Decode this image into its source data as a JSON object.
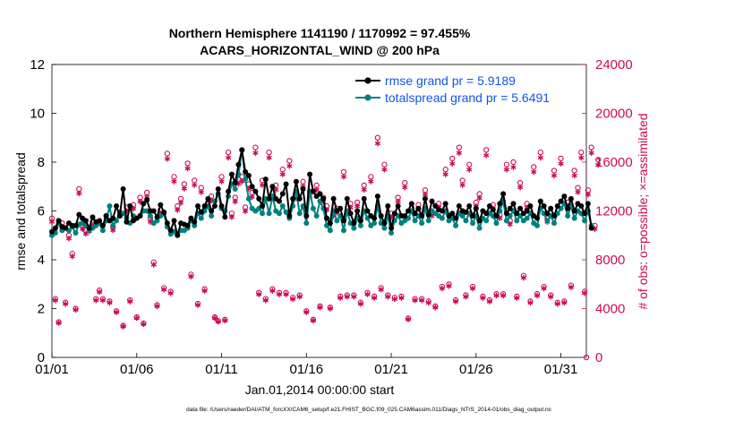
{
  "colors": {
    "rmse": "#000000",
    "spread": "#008080",
    "obs": "#cc0a55",
    "legend_text": "#1155ee",
    "right_axis": "#cc0a55"
  },
  "chart_data": {
    "type": "line",
    "title": "Northern Hemisphere 1141190 / 1170992 = 97.455%",
    "subtitle": "ACARS_HORIZONTAL_WIND @ 200 hPa",
    "xlabel": "Jan.01,2014 00:00:00 start",
    "ylabel": "rmse and totalspread",
    "y2label": "# of obs: o=possible; ×=assimilated",
    "footnote": "data file: /Users/raeder/DAI/ATM_forcXX/CAM6_setup/f.e21.FHIST_BGC.f09_025.CAM6assim.011/Diags_NTrS_2014-01/obs_diag_output.nc",
    "xlim": [
      0,
      31.5
    ],
    "ylim": [
      0,
      12
    ],
    "y2lim": [
      0,
      24000
    ],
    "xticks": [
      0,
      5,
      10,
      15,
      20,
      25,
      30
    ],
    "xtick_labels": [
      "01/01",
      "01/06",
      "01/11",
      "01/16",
      "01/21",
      "01/26",
      "01/31"
    ],
    "yticks": [
      0,
      2,
      4,
      6,
      8,
      10,
      12
    ],
    "ytick_labels": [
      "0",
      "2",
      "4",
      "6",
      "8",
      "10",
      "12"
    ],
    "y2ticks": [
      0,
      4000,
      8000,
      12000,
      16000,
      20000,
      24000
    ],
    "y2tick_labels": [
      "0",
      "4000",
      "8000",
      "12000",
      "16000",
      "20000",
      "24000"
    ],
    "legend": {
      "position": "top-right",
      "entries": [
        "rmse grand pr = 5.9189",
        "totalspread grand pr = 5.6491"
      ]
    },
    "series": [
      {
        "name": "rmse",
        "values": [
          5.15,
          5.3,
          5.6,
          5.35,
          5.3,
          5.5,
          5.4,
          5.4,
          5.85,
          5.7,
          5.6,
          5.3,
          5.75,
          5.55,
          5.6,
          5.4,
          5.8,
          5.6,
          5.7,
          6.2,
          5.8,
          6.9,
          5.55,
          6.2,
          5.6,
          5.7,
          5.8,
          6.3,
          6.45,
          6.0,
          6.0,
          5.75,
          6.25,
          5.95,
          5.5,
          5.2,
          5.6,
          5.0,
          5.5,
          5.45,
          5.4,
          5.7,
          5.55,
          6.2,
          5.95,
          6.2,
          6.5,
          6.0,
          6.2,
          6.9,
          6.2,
          5.75,
          6.8,
          7.5,
          7.15,
          7.9,
          8.5,
          7.6,
          7.45,
          7.0,
          6.8,
          6.5,
          6.2,
          7.3,
          6.5,
          7.0,
          6.5,
          6.4,
          6.7,
          7.1,
          5.8,
          6.5,
          7.2,
          6.5,
          6.9,
          5.8,
          7.5,
          6.8,
          6.6,
          6.7,
          6.5,
          5.7,
          5.5,
          6.5,
          6.0,
          6.1,
          5.6,
          6.5,
          5.9,
          5.5,
          6.0,
          5.6,
          6.5,
          6.0,
          5.8,
          5.7,
          6.6,
          5.8,
          5.5,
          6.2,
          5.3,
          5.9,
          6.2,
          5.8,
          5.8,
          6.0,
          6.3,
          5.9,
          6.1,
          5.8,
          6.5,
          5.85,
          6.4,
          6.2,
          6.05,
          6.0,
          6.3,
          5.8,
          5.9,
          5.7,
          6.2,
          6.0,
          5.95,
          6.2,
          5.8,
          6.1,
          5.6,
          6.0,
          5.9,
          6.2,
          6.05,
          5.8,
          6.3,
          6.7,
          5.9,
          6.1,
          6.3,
          5.9,
          6.1,
          5.9,
          6.0,
          6.2,
          5.8,
          5.7,
          6.4,
          6.2,
          5.9,
          6.1,
          5.8,
          6.2,
          6.4,
          6.6,
          6.1,
          6.5,
          6.0,
          6.3,
          6.2,
          5.9,
          6.3,
          5.3
        ]
      },
      {
        "name": "totalspread",
        "values": [
          5.0,
          5.1,
          5.5,
          5.2,
          5.3,
          5.2,
          5.35,
          5.1,
          5.45,
          5.5,
          5.4,
          5.2,
          5.3,
          5.4,
          5.5,
          5.2,
          5.6,
          6.2,
          5.4,
          5.6,
          5.9,
          5.9,
          5.7,
          5.5,
          5.8,
          5.7,
          5.8,
          6.0,
          6.0,
          5.8,
          5.5,
          5.6,
          5.8,
          5.9,
          5.35,
          5.05,
          5.15,
          5.05,
          5.2,
          5.2,
          5.3,
          5.6,
          5.4,
          5.9,
          5.7,
          6.0,
          6.2,
          5.8,
          6.4,
          6.7,
          6.1,
          6.0,
          6.6,
          7.1,
          6.9,
          7.5,
          8.5,
          7.3,
          6.5,
          6.1,
          6.0,
          6.1,
          5.9,
          6.5,
          5.9,
          6.6,
          6.0,
          5.9,
          6.2,
          5.95,
          5.7,
          6.2,
          6.8,
          5.9,
          6.2,
          5.5,
          6.8,
          6.1,
          5.8,
          6.4,
          6.1,
          5.4,
          5.2,
          6.0,
          5.6,
          5.8,
          5.2,
          6.0,
          5.5,
          5.3,
          5.7,
          5.4,
          6.0,
          5.7,
          5.4,
          5.5,
          6.2,
          5.5,
          5.3,
          5.8,
          5.1,
          5.6,
          5.8,
          5.5,
          5.6,
          5.7,
          6.0,
          5.6,
          5.8,
          5.5,
          6.1,
          5.6,
          6.0,
          5.9,
          5.8,
          5.7,
          6.0,
          5.6,
          5.7,
          5.4,
          5.9,
          5.8,
          5.6,
          5.9,
          5.5,
          5.8,
          5.3,
          5.7,
          5.6,
          5.9,
          5.8,
          5.5,
          6.0,
          6.4,
          5.6,
          5.8,
          6.0,
          5.6,
          5.8,
          5.6,
          5.7,
          5.9,
          5.5,
          5.4,
          6.1,
          5.9,
          5.6,
          5.8,
          5.5,
          5.9,
          6.1,
          6.3,
          5.8,
          6.2,
          5.7,
          6.0,
          5.9,
          5.6,
          6.0,
          5.4
        ]
      }
    ],
    "obs_counts_possible": [
      11400,
      4800,
      2900,
      11000,
      4500,
      10000,
      8500,
      4000,
      13800,
      10800,
      10400,
      10600,
      11100,
      4800,
      5500,
      4800,
      11600,
      4600,
      10700,
      3800,
      11900,
      2600,
      12300,
      4700,
      12500,
      3300,
      13100,
      2800,
      13500,
      11400,
      7800,
      4300,
      12100,
      5700,
      16700,
      5400,
      14800,
      12400,
      13000,
      14200,
      15900,
      6800,
      14500,
      4400,
      13900,
      5600,
      12700,
      13200,
      3300,
      3000,
      14800,
      3100,
      16800,
      11800,
      13100,
      14600,
      14800,
      12300,
      14200,
      13500,
      17200,
      5300,
      14500,
      4800,
      16800,
      5600,
      14100,
      5300,
      15400,
      5300,
      16100,
      4900,
      13400,
      5100,
      14400,
      3800,
      13600,
      3100,
      14100,
      4200,
      13100,
      12400,
      4100,
      11900,
      12200,
      5000,
      15200,
      5100,
      12600,
      5100,
      12700,
      4500,
      14100,
      5300,
      14800,
      5000,
      18000,
      5700,
      15800,
      5100,
      11800,
      4900,
      13100,
      5000,
      14300,
      3200,
      12300,
      4800,
      12500,
      4800,
      13700,
      4600,
      11900,
      4200,
      12600,
      5800,
      15400,
      6000,
      16300,
      4700,
      17200,
      14500,
      5100,
      15800,
      5800,
      12700,
      13400,
      5000,
      17000,
      4700,
      12500,
      5200,
      11700,
      5200,
      15800,
      11200,
      16000,
      5000,
      14300,
      6700,
      12600,
      4600,
      15600,
      5200,
      16800,
      5800,
      11400,
      5100,
      15300,
      4500,
      16300,
      4600,
      12700,
      5900,
      15300,
      13900,
      16800,
      5400,
      13700,
      17200,
      10800,
      16200
    ]
  }
}
